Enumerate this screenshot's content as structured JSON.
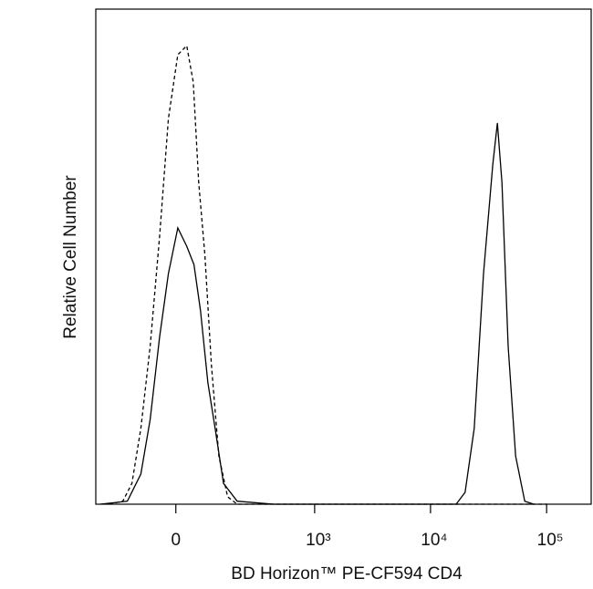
{
  "chart_data": {
    "type": "line",
    "x_label": "BD Horizon™ PE-CF594 CD4",
    "y_label": "Relative Cell Number",
    "xscale": "asinh",
    "xlim": [
      -300,
      242000
    ],
    "ylim": [
      0,
      100
    ],
    "xticks": [
      0,
      {
        "value": 1000,
        "label": "10³"
      },
      {
        "value": 10000,
        "label": "10⁴"
      },
      {
        "value": 100000,
        "label": "10⁵"
      }
    ],
    "series": [
      {
        "color": "#000000",
        "dash": false,
        "x": [
          -273,
          -143,
          -96,
          -68,
          -42,
          -19,
          5,
          28,
          47,
          65,
          87,
          110,
          140,
          197,
          436,
          16640,
          19840,
          23800,
          28600,
          34400,
          37700,
          41200,
          46600,
          54100,
          64800,
          77600
        ],
        "values": [
          0,
          0.6,
          6.1,
          17.1,
          33.7,
          46.6,
          55.8,
          52.1,
          48.4,
          39.2,
          24.5,
          15.3,
          4.2,
          0.6,
          0,
          0,
          2.4,
          15.3,
          46.6,
          68.7,
          77,
          65,
          31.9,
          9.7,
          0.6,
          0
        ]
      },
      {
        "color": "#000000",
        "dash": true,
        "x": [
          -223,
          -161,
          -126,
          -96,
          -68,
          -42,
          -19,
          5,
          28,
          45,
          60,
          78,
          98,
          123,
          156,
          197,
          101600
        ],
        "values": [
          0,
          0.6,
          4.2,
          15.3,
          31.9,
          54,
          77.9,
          90.8,
          92.6,
          85.3,
          65,
          50.3,
          28.2,
          9.7,
          1.5,
          0,
          0
        ]
      }
    ]
  }
}
